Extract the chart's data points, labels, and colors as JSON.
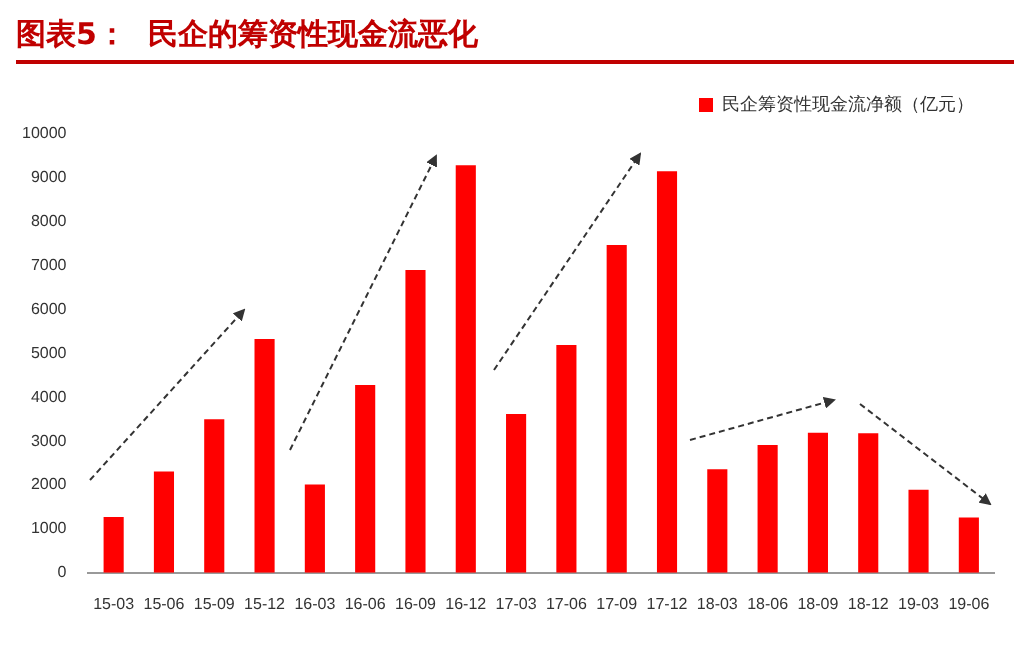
{
  "chart_data": {
    "type": "bar",
    "title": "图表5：  民企的筹资性现金流恶化",
    "categories": [
      "15-03",
      "15-06",
      "15-09",
      "15-12",
      "16-03",
      "16-06",
      "16-09",
      "16-12",
      "17-03",
      "17-06",
      "17-09",
      "17-12",
      "18-03",
      "18-06",
      "18-09",
      "18-12",
      "19-03",
      "19-06"
    ],
    "series": [
      {
        "name": "民企筹资性现金流净额（亿元）",
        "color": "#ff0000",
        "values": [
          1270,
          2310,
          3500,
          5330,
          2010,
          4280,
          6900,
          9290,
          3620,
          5190,
          7470,
          9150,
          2360,
          2910,
          3190,
          3180,
          1890,
          1260
        ]
      }
    ],
    "ylim": [
      0,
      10000
    ],
    "yticks": [
      0,
      1000,
      2000,
      3000,
      4000,
      5000,
      6000,
      7000,
      8000,
      9000,
      10000
    ],
    "grid": false,
    "legend": "top right"
  }
}
